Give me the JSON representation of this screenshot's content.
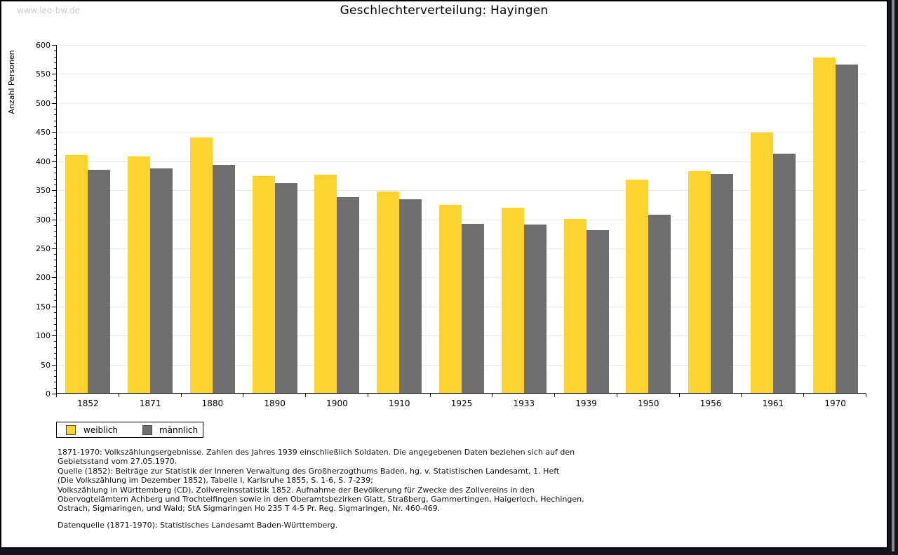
{
  "watermark": "www.leo-bw.de",
  "title": "Geschlechterverteilung: Hayingen",
  "chart_data": {
    "type": "bar",
    "title": "Geschlechterverteilung: Hayingen",
    "xlabel": "",
    "ylabel": "Anzahl Personen",
    "ylim": [
      0,
      600
    ],
    "ytick_step": 50,
    "minor_tick_step": 10,
    "grid": true,
    "legend_position": "bottom-left",
    "categories": [
      "1852",
      "1871",
      "1880",
      "1890",
      "1900",
      "1910",
      "1925",
      "1933",
      "1939",
      "1950",
      "1956",
      "1961",
      "1970"
    ],
    "series": [
      {
        "name": "weiblich",
        "color": "#FCD32F",
        "border": "#9c8400",
        "values": [
          409,
          407,
          440,
          373,
          375,
          346,
          324,
          319,
          300,
          367,
          382,
          448,
          577
        ]
      },
      {
        "name": "männlich",
        "color": "#6F6F6F",
        "border": "#3f3f3f",
        "values": [
          384,
          386,
          393,
          361,
          337,
          333,
          291,
          290,
          280,
          307,
          377,
          412,
          565
        ]
      }
    ]
  },
  "legend": {
    "items": [
      {
        "label": "weiblich",
        "color": "#FCD32F"
      },
      {
        "label": "männlich",
        "color": "#6F6F6F"
      }
    ]
  },
  "footnotes": {
    "lines": [
      "1871-1970: Volkszählungsergebnisse. Zahlen des Jahres 1939 einschließlich Soldaten. Die angegebenen Daten beziehen sich auf den",
      "Gebietsstand vom 27.05.1970.",
      "Quelle (1852): Beiträge zur Statistik der Inneren Verwaltung des Großherzogthums Baden, hg. v. Statistischen Landesamt, 1. Heft",
      "(Die Volkszählung im Dezember 1852), Tabelle I, Karlsruhe 1855, S. 1-6, S. 7-239;",
      "Volkszählung in Württemberg (CD), Zollvereinsstatistik 1852. Aufnahme der Bevölkerung für Zwecke des Zollvereins in den",
      "Obervogteiämtern Achberg und Trochtelfingen sowie in den Oberamtsbezirken Glatt, Straßberg, Gammertingen, Haigerloch, Hechingen,",
      "Ostrach, Sigmaringen, und Wald; StA Sigmaringen Ho 235 T 4-5 Pr. Reg. Sigmaringen, Nr. 460-469."
    ],
    "datasource": "Datenquelle (1871-1970): Statistisches Landesamt Baden-Württemberg."
  }
}
